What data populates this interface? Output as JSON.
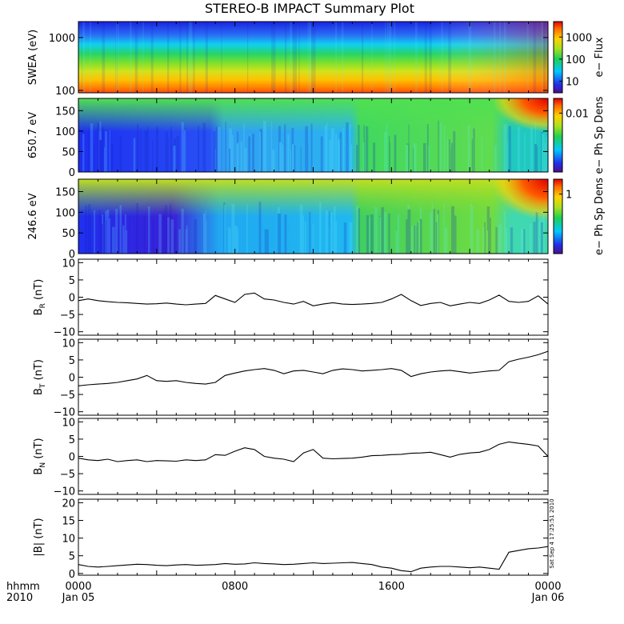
{
  "title": "STEREO-B IMPACT Summary Plot",
  "timestamp": "Sat Sep  4 17:25:51 2010",
  "x_axis": {
    "row1_label": "hhmm",
    "row2_label": "2010",
    "ticks": [
      {
        "hhmm": "0000",
        "date": "Jan 05",
        "pos": 0
      },
      {
        "hhmm": "0800",
        "date": "",
        "pos": 0.3333
      },
      {
        "hhmm": "1600",
        "date": "",
        "pos": 0.6667
      },
      {
        "hhmm": "0000",
        "date": "Jan 06",
        "pos": 1
      }
    ]
  },
  "chart_data": [
    {
      "type": "heatmap",
      "ylabel": "SWEA (eV)",
      "yscale": "log",
      "ylim": [
        90,
        2000
      ],
      "ytick_labels": [
        "1000",
        "100"
      ],
      "ytick_values": [
        1000,
        100
      ],
      "colorbar": {
        "label": "e− Flux",
        "scale": "log",
        "tick_labels": [
          "1000",
          "100",
          "10"
        ],
        "tick_values": [
          1000,
          100,
          10
        ],
        "range": [
          3,
          5000
        ]
      },
      "description": "Energy spectrum: high flux (red/orange) near 100 eV, green ~200-500 eV, blue above ~800 eV; intensity rises toward end of day."
    },
    {
      "type": "heatmap",
      "ylabel": "650.7 eV",
      "ylim": [
        0,
        180
      ],
      "ytick_labels": [
        "150",
        "100",
        "50",
        "0"
      ],
      "ytick_values": [
        150,
        100,
        50,
        0
      ],
      "colorbar": {
        "label": "e− Ph Sp Dens",
        "scale": "log",
        "tick_labels": [
          "0.01"
        ],
        "tick_values": [
          0.01
        ]
      },
      "description": "Pitch-angle distribution at 650.7 eV."
    },
    {
      "type": "heatmap",
      "ylabel": "246.6 eV",
      "ylim": [
        0,
        180
      ],
      "ytick_labels": [
        "150",
        "100",
        "50",
        "0"
      ],
      "ytick_values": [
        150,
        100,
        50,
        0
      ],
      "colorbar": {
        "label": "e− Ph Sp Dens",
        "scale": "log",
        "tick_labels": [
          "1"
        ],
        "tick_values": [
          1
        ]
      },
      "description": "Pitch-angle distribution at 246.6 eV."
    },
    {
      "type": "line",
      "ylabel_main": "B",
      "ylabel_sub": "R",
      "ylabel_unit": "(nT)",
      "ylim": [
        -11,
        11
      ],
      "ytick_labels": [
        "10",
        "5",
        "0",
        "−5",
        "−10"
      ],
      "ytick_values": [
        10,
        5,
        0,
        -5,
        -10
      ],
      "x": [
        0,
        0.5,
        1,
        1.5,
        2,
        2.5,
        3,
        3.5,
        4,
        4.5,
        5,
        5.5,
        6,
        6.5,
        7,
        7.5,
        8,
        8.5,
        9,
        9.5,
        10,
        10.5,
        11,
        11.5,
        12,
        12.5,
        13,
        13.5,
        14,
        14.5,
        15,
        15.5,
        16,
        16.5,
        17,
        17.5,
        18,
        18.5,
        19,
        19.5,
        20,
        20.5,
        21,
        21.5,
        22,
        22.5,
        23,
        23.5,
        24
      ],
      "y": [
        -1,
        -0.5,
        -1,
        -1.3,
        -1.5,
        -1.6,
        -1.8,
        -2,
        -1.9,
        -1.7,
        -2,
        -2.2,
        -2,
        -1.8,
        0.5,
        -0.5,
        -1.5,
        0.8,
        1.2,
        -0.5,
        -0.8,
        -1.5,
        -2,
        -1.2,
        -2.5,
        -2,
        -1.6,
        -2,
        -2.1,
        -2,
        -1.8,
        -1.5,
        -0.5,
        0.8,
        -1,
        -2.4,
        -1.8,
        -1.5,
        -2.5,
        -2,
        -1.5,
        -1.8,
        -0.8,
        0.6,
        -1.2,
        -1.5,
        -1.2,
        0.4,
        -2
      ]
    },
    {
      "type": "line",
      "ylabel_main": "B",
      "ylabel_sub": "T",
      "ylabel_unit": "(nT)",
      "ylim": [
        -11,
        11
      ],
      "ytick_labels": [
        "10",
        "5",
        "0",
        "−5",
        "−10"
      ],
      "ytick_values": [
        10,
        5,
        0,
        -5,
        -10
      ],
      "x": [
        0,
        0.5,
        1,
        1.5,
        2,
        2.5,
        3,
        3.5,
        4,
        4.5,
        5,
        5.5,
        6,
        6.5,
        7,
        7.5,
        8,
        8.5,
        9,
        9.5,
        10,
        10.5,
        11,
        11.5,
        12,
        12.5,
        13,
        13.5,
        14,
        14.5,
        15,
        15.5,
        16,
        16.5,
        17,
        17.5,
        18,
        18.5,
        19,
        19.5,
        20,
        20.5,
        21,
        21.5,
        22,
        22.5,
        23,
        23.5,
        24
      ],
      "y": [
        -2.5,
        -2.2,
        -2,
        -1.8,
        -1.5,
        -1,
        -0.5,
        0.5,
        -1,
        -1.2,
        -1,
        -1.5,
        -1.8,
        -2,
        -1.5,
        0.5,
        1.2,
        1.8,
        2.2,
        2.5,
        2,
        1,
        1.8,
        2,
        1.5,
        1,
        2,
        2.4,
        2.2,
        1.8,
        2,
        2.2,
        2.5,
        2,
        0.2,
        1,
        1.5,
        1.8,
        2,
        1.6,
        1.2,
        1.5,
        1.8,
        2,
        4.5,
        5.2,
        5.8,
        6.5,
        7.5
      ]
    },
    {
      "type": "line",
      "ylabel_main": "B",
      "ylabel_sub": "N",
      "ylabel_unit": "(nT)",
      "ylim": [
        -11,
        11
      ],
      "ytick_labels": [
        "10",
        "5",
        "0",
        "−5",
        "−10"
      ],
      "ytick_values": [
        10,
        5,
        0,
        -5,
        -10
      ],
      "x": [
        0,
        0.5,
        1,
        1.5,
        2,
        2.5,
        3,
        3.5,
        4,
        4.5,
        5,
        5.5,
        6,
        6.5,
        7,
        7.5,
        8,
        8.5,
        9,
        9.5,
        10,
        10.5,
        11,
        11.5,
        12,
        12.5,
        13,
        13.5,
        14,
        14.5,
        15,
        15.5,
        16,
        16.5,
        17,
        17.5,
        18,
        18.5,
        19,
        19.5,
        20,
        20.5,
        21,
        21.5,
        22,
        22.5,
        23,
        23.5,
        24
      ],
      "y": [
        -0.5,
        -1,
        -1.2,
        -0.8,
        -1.5,
        -1.2,
        -1,
        -1.5,
        -1.2,
        -1.3,
        -1.4,
        -1,
        -1.2,
        -1,
        0.5,
        0.3,
        1.5,
        2.5,
        2,
        0,
        -0.5,
        -0.8,
        -1.5,
        1,
        2,
        -0.5,
        -0.7,
        -0.6,
        -0.5,
        -0.2,
        0.2,
        0.3,
        0.5,
        0.6,
        0.9,
        1,
        1.2,
        0.5,
        -0.2,
        0.6,
        1,
        1.2,
        2,
        3.5,
        4.2,
        3.8,
        3.5,
        3,
        0
      ]
    },
    {
      "type": "line",
      "ylabel_main": "|B|",
      "ylabel_sub": "",
      "ylabel_unit": "(nT)",
      "ylim": [
        -0.5,
        21
      ],
      "ytick_labels": [
        "20",
        "15",
        "10",
        "5",
        "0"
      ],
      "ytick_values": [
        20,
        15,
        10,
        5,
        0
      ],
      "x": [
        0,
        0.5,
        1,
        1.5,
        2,
        2.5,
        3,
        3.5,
        4,
        4.5,
        5,
        5.5,
        6,
        6.5,
        7,
        7.5,
        8,
        8.5,
        9,
        9.5,
        10,
        10.5,
        11,
        11.5,
        12,
        12.5,
        13,
        13.5,
        14,
        14.5,
        15,
        15.5,
        16,
        16.5,
        17,
        17.5,
        18,
        18.5,
        19,
        19.5,
        20,
        20.5,
        21,
        21.5,
        22,
        22.5,
        23,
        23.5,
        24
      ],
      "y": [
        2.5,
        2,
        1.8,
        2,
        2.2,
        2.4,
        2.6,
        2.5,
        2.3,
        2.2,
        2.4,
        2.5,
        2.3,
        2.4,
        2.5,
        2.8,
        2.6,
        2.7,
        3,
        2.8,
        2.7,
        2.5,
        2.6,
        2.8,
        3,
        2.8,
        2.9,
        3,
        3.1,
        2.8,
        2.5,
        1.8,
        1.5,
        0.8,
        0.5,
        1.5,
        1.8,
        2,
        2,
        1.8,
        1.6,
        1.8,
        1.5,
        1.2,
        6,
        6.5,
        7,
        7.2,
        7.6
      ]
    }
  ]
}
